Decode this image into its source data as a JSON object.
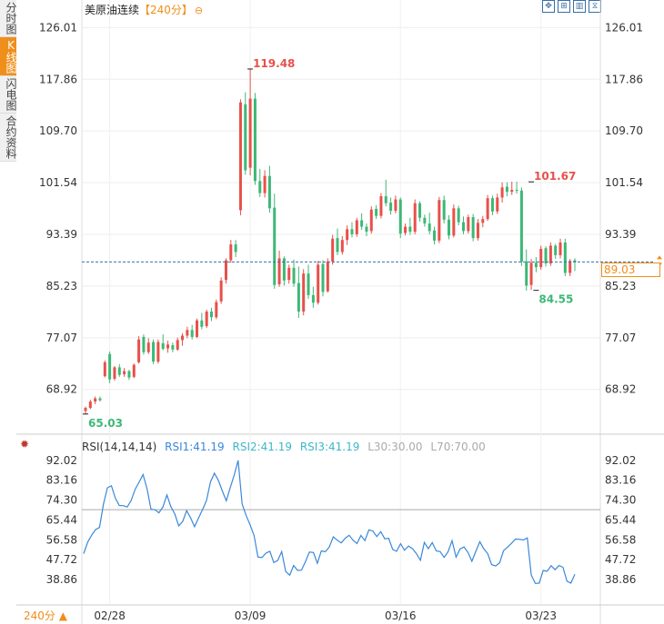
{
  "side_tabs": [
    "分时图",
    "K线图",
    "闪电图",
    "合约资料"
  ],
  "active_tab": 1,
  "title": {
    "name": "美原油连续",
    "period": "【240分】",
    "ring_icon": "⊖"
  },
  "toolbar": [
    {
      "icon": "move-icon",
      "glyph": "✥"
    },
    {
      "icon": "zoom-in-icon",
      "glyph": "⊞"
    },
    {
      "icon": "chart-type-icon",
      "glyph": "▥"
    },
    {
      "icon": "history-icon",
      "glyph": "⧖"
    }
  ],
  "current_price": "89.03",
  "period_button": "240分 ▲",
  "chart_data": [
    {
      "type": "candlestick",
      "title": "美原油连续【240分】",
      "y_ticks": [
        "126.01",
        "117.86",
        "109.70",
        "101.54",
        "93.39",
        "85.23",
        "77.07",
        "68.92"
      ],
      "ylim": [
        63.0,
        127.5
      ],
      "x_ticks": [
        {
          "label": "02/28",
          "index": 5
        },
        {
          "label": "03/09",
          "index": 34
        },
        {
          "label": "03/16",
          "index": 65
        },
        {
          "label": "03/23",
          "index": 94
        }
      ],
      "annotations": [
        {
          "label": "119.48",
          "index": 34,
          "value": 119.48,
          "kind": "high"
        },
        {
          "label": "101.67",
          "index": 92,
          "value": 101.67,
          "kind": "high"
        },
        {
          "label": "84.55",
          "index": 93,
          "value": 84.55,
          "kind": "low"
        },
        {
          "label": "65.03",
          "index": 0,
          "value": 65.03,
          "kind": "low"
        }
      ],
      "last_price": 89.03,
      "colors": {
        "up": "#e8504a",
        "down": "#3db876",
        "grid": "#eeeeee"
      },
      "candles": [
        [
          65.5,
          66.2,
          65.0,
          66.0
        ],
        [
          66.0,
          67.3,
          65.8,
          67.0
        ],
        [
          67.0,
          67.8,
          66.6,
          67.5
        ],
        [
          67.5,
          67.8,
          67.0,
          67.2
        ],
        [
          71.0,
          73.5,
          70.8,
          73.2
        ],
        [
          74.5,
          74.9,
          69.9,
          70.5
        ],
        [
          70.6,
          72.6,
          70.3,
          72.4
        ],
        [
          72.4,
          72.9,
          70.9,
          71.2
        ],
        [
          71.3,
          72.3,
          70.9,
          71.8
        ],
        [
          71.8,
          72.0,
          70.4,
          70.8
        ],
        [
          70.9,
          73.0,
          70.7,
          72.8
        ],
        [
          73.2,
          77.3,
          73.0,
          76.8
        ],
        [
          77.2,
          77.6,
          74.4,
          74.8
        ],
        [
          74.8,
          77.0,
          74.5,
          76.3
        ],
        [
          76.4,
          76.8,
          72.9,
          73.3
        ],
        [
          73.3,
          76.8,
          73.0,
          76.4
        ],
        [
          76.2,
          77.6,
          75.1,
          75.3
        ],
        [
          75.4,
          76.6,
          74.7,
          76.0
        ],
        [
          75.9,
          76.3,
          74.8,
          75.2
        ],
        [
          75.2,
          77.1,
          75.0,
          76.7
        ],
        [
          76.7,
          77.8,
          75.8,
          77.4
        ],
        [
          77.4,
          78.8,
          77.0,
          78.3
        ],
        [
          78.3,
          79.1,
          76.8,
          77.2
        ],
        [
          77.2,
          80.1,
          77.0,
          79.8
        ],
        [
          79.8,
          81.0,
          78.4,
          78.8
        ],
        [
          78.9,
          81.5,
          78.6,
          81.2
        ],
        [
          81.2,
          81.8,
          79.7,
          80.3
        ],
        [
          80.3,
          83.1,
          80.0,
          82.7
        ],
        [
          82.8,
          86.6,
          82.4,
          86.1
        ],
        [
          86.2,
          89.6,
          85.6,
          89.3
        ],
        [
          89.3,
          92.5,
          88.9,
          91.8
        ],
        [
          91.8,
          92.5,
          89.8,
          90.6
        ],
        [
          97.2,
          114.7,
          96.4,
          114.2
        ],
        [
          113.9,
          115.8,
          102.8,
          103.5
        ],
        [
          103.9,
          119.5,
          102.7,
          114.8
        ],
        [
          114.8,
          115.7,
          101.2,
          101.8
        ],
        [
          101.8,
          103.7,
          99.3,
          99.9
        ],
        [
          99.9,
          103.5,
          99.2,
          102.6
        ],
        [
          102.6,
          104.2,
          96.8,
          97.5
        ],
        [
          97.6,
          99.8,
          84.8,
          85.4
        ],
        [
          85.5,
          90.8,
          85.1,
          89.6
        ],
        [
          89.6,
          89.9,
          85.3,
          86.1
        ],
        [
          86.2,
          88.6,
          85.6,
          88.1
        ],
        [
          88.1,
          89.4,
          85.1,
          85.6
        ],
        [
          85.7,
          88.3,
          80.2,
          81.2
        ],
        [
          81.2,
          87.9,
          80.6,
          87.2
        ],
        [
          87.2,
          88.6,
          83.2,
          83.8
        ],
        [
          83.8,
          85.1,
          81.8,
          82.6
        ],
        [
          82.6,
          89.2,
          82.3,
          88.6
        ],
        [
          88.7,
          89.3,
          83.6,
          84.3
        ],
        [
          84.4,
          89.6,
          84.2,
          89.1
        ],
        [
          89.1,
          93.3,
          88.6,
          92.7
        ],
        [
          92.8,
          94.3,
          90.1,
          90.6
        ],
        [
          90.6,
          93.1,
          90.2,
          92.5
        ],
        [
          92.5,
          94.8,
          91.7,
          94.2
        ],
        [
          94.2,
          95.3,
          92.9,
          93.4
        ],
        [
          93.4,
          96.0,
          93.0,
          95.6
        ],
        [
          95.6,
          96.7,
          94.1,
          94.6
        ],
        [
          94.6,
          95.1,
          93.1,
          93.8
        ],
        [
          93.9,
          97.8,
          93.5,
          97.3
        ],
        [
          97.4,
          98.0,
          95.8,
          96.3
        ],
        [
          96.3,
          99.9,
          95.9,
          99.4
        ],
        [
          99.4,
          102.0,
          97.8,
          98.3
        ],
        [
          98.4,
          99.2,
          96.5,
          97.1
        ],
        [
          97.1,
          99.5,
          96.7,
          98.9
        ],
        [
          98.9,
          99.2,
          92.8,
          93.5
        ],
        [
          93.6,
          95.1,
          93.2,
          94.6
        ],
        [
          94.6,
          96.0,
          93.3,
          93.8
        ],
        [
          93.8,
          98.9,
          93.4,
          98.3
        ],
        [
          98.3,
          98.6,
          95.4,
          96.0
        ],
        [
          96.0,
          96.5,
          94.6,
          95.1
        ],
        [
          95.1,
          96.8,
          93.4,
          93.9
        ],
        [
          94.0,
          94.6,
          91.8,
          92.4
        ],
        [
          92.4,
          99.3,
          92.0,
          98.8
        ],
        [
          98.8,
          99.5,
          95.1,
          95.7
        ],
        [
          95.7,
          96.4,
          92.6,
          93.2
        ],
        [
          93.2,
          98.1,
          92.9,
          97.5
        ],
        [
          97.5,
          97.9,
          94.8,
          95.3
        ],
        [
          95.3,
          96.2,
          93.4,
          93.9
        ],
        [
          93.9,
          96.5,
          93.5,
          96.1
        ],
        [
          96.1,
          96.6,
          92.3,
          92.8
        ],
        [
          92.8,
          95.8,
          92.4,
          95.2
        ],
        [
          95.2,
          96.3,
          94.5,
          95.8
        ],
        [
          95.8,
          99.6,
          95.5,
          99.1
        ],
        [
          99.1,
          99.5,
          96.4,
          97.0
        ],
        [
          97.0,
          99.8,
          96.6,
          99.2
        ],
        [
          99.2,
          101.6,
          98.4,
          100.8
        ],
        [
          100.9,
          101.6,
          99.4,
          100.1
        ],
        [
          100.1,
          101.7,
          99.6,
          100.4
        ],
        [
          100.4,
          101.7,
          99.8,
          100.3
        ],
        [
          100.3,
          100.8,
          88.4,
          89.1
        ],
        [
          89.1,
          91.0,
          84.5,
          85.3
        ],
        [
          85.4,
          89.5,
          84.6,
          88.9
        ],
        [
          88.9,
          89.8,
          87.4,
          88.2
        ],
        [
          88.2,
          91.6,
          87.8,
          91.1
        ],
        [
          91.2,
          91.5,
          88.3,
          88.8
        ],
        [
          88.8,
          92.1,
          88.4,
          91.6
        ],
        [
          91.6,
          91.9,
          89.5,
          90.1
        ],
        [
          90.1,
          92.7,
          89.6,
          92.1
        ],
        [
          92.1,
          92.7,
          86.8,
          87.3
        ],
        [
          87.3,
          89.5,
          86.8,
          89.2
        ],
        [
          89.3,
          89.6,
          87.6,
          89.03
        ]
      ]
    },
    {
      "type": "line",
      "title": "RSI(14,14,14)",
      "legend": [
        {
          "label": "RSI(14,14,14)",
          "color": "#333333"
        },
        {
          "label": "RSI1:41.19",
          "color": "#3a88d9"
        },
        {
          "label": "RSI2:41.19",
          "color": "#3db8c8"
        },
        {
          "label": "RSI3:41.19",
          "color": "#3db8c8"
        },
        {
          "label": "L30:30.00",
          "color": "#aaaaaa"
        },
        {
          "label": "L70:70.00",
          "color": "#aaaaaa"
        }
      ],
      "y_ticks": [
        "92.02",
        "83.16",
        "74.30",
        "65.44",
        "56.58",
        "47.72",
        "38.86"
      ],
      "ylim": [
        36.0,
        94.0
      ],
      "reference_line": 70.0,
      "series": [
        {
          "name": "RSI1",
          "color": "#3a88d9",
          "values": [
            50.4,
            55.5,
            58.6,
            61.1,
            62.1,
            72.6,
            79.8,
            80.7,
            75.2,
            71.9,
            71.8,
            71.2,
            74.2,
            79.1,
            82.4,
            85.7,
            79.3,
            70.2,
            70.0,
            68.6,
            71.2,
            76.6,
            71.4,
            68.1,
            62.8,
            64.8,
            69.6,
            66.3,
            62.4,
            66.3,
            70.0,
            74.1,
            82.4,
            86.3,
            83.1,
            78.4,
            74.0,
            79.8,
            85.5,
            92.0,
            72.6,
            67.5,
            63.3,
            58.5,
            48.9,
            48.6,
            50.6,
            51.4,
            46.4,
            47.4,
            51.3,
            42.4,
            40.8,
            45.1,
            42.9,
            43.0,
            46.9,
            51.1,
            50.9,
            46.1,
            51.6,
            51.2,
            53.3,
            57.9,
            56.4,
            55.2,
            57.2,
            58.6,
            56.4,
            54.9,
            58.5,
            56.2,
            61.0,
            60.5,
            58.0,
            60.2,
            57.0,
            57.2,
            52.3,
            51.4,
            54.8,
            51.9,
            53.8,
            52.6,
            50.4,
            47.4,
            55.4,
            52.6,
            55.3,
            51.6,
            51.3,
            48.7,
            51.2,
            56.2,
            48.8,
            52.4,
            53.4,
            51.0,
            47.0,
            51.4,
            55.7,
            52.6,
            50.4,
            45.5,
            44.9,
            46.3,
            51.7,
            53.3,
            55.0,
            56.9,
            56.8,
            56.5,
            57.4,
            40.8,
            37.1,
            37.2,
            42.9,
            42.5,
            45.0,
            43.2,
            45.1,
            44.3,
            38.1,
            37.2,
            41.2
          ]
        }
      ]
    }
  ]
}
